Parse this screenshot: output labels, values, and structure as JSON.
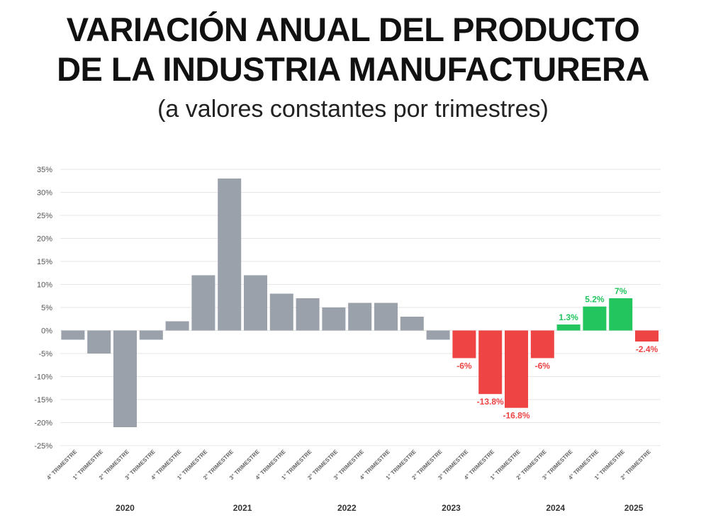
{
  "title_line1": "VARIACIÓN ANUAL DEL PRODUCTO",
  "title_line2": "DE LA INDUSTRIA MANUFACTURERA",
  "subtitle": "(a valores constantes por trimestres)",
  "colors": {
    "neutral": "#9ba1ab",
    "negative": "#ee4444",
    "positive": "#22c55e",
    "grid": "#e6e6e6"
  },
  "chart_data": {
    "type": "bar",
    "title": "VARIACIÓN ANUAL DEL PRODUCTO DE LA INDUSTRIA MANUFACTURERA",
    "subtitle": "(a valores constantes por trimestres)",
    "ylim": [
      -25,
      35
    ],
    "yticks": [
      35,
      30,
      25,
      20,
      15,
      10,
      5,
      0,
      -5,
      -10,
      -15,
      -20,
      -25
    ],
    "ytick_labels": [
      "35%",
      "30%",
      "25%",
      "20%",
      "15%",
      "10%",
      "5%",
      "0%",
      "-5%",
      "-10%",
      "-15%",
      "-20%",
      "-25%"
    ],
    "categories": [
      "4° TRIMESTRE",
      "1° TRIMESTRE",
      "2° TRIMESTRE",
      "3° TRIMESTRE",
      "4° TRIMESTRE",
      "1° TRIMESTRE",
      "2° TRIMESTRE",
      "3° TRIMESTRE",
      "4° TRIMESTRE",
      "1° TRIMESTRE",
      "2° TRIMESTRE",
      "3° TRIMESTRE",
      "4° TRIMESTRE",
      "1° TRIMESTRE",
      "2° TRIMESTRE",
      "3° TRIMESTRE",
      "4° TRIMESTRE",
      "1° TRIMESTRE",
      "2° TRIMESTRE",
      "3° TRIMESTRE",
      "4° TRIMESTRE",
      "1° TRIMESTRE",
      "2° TRIMESTRE"
    ],
    "values": [
      -2,
      -5,
      -21,
      -2,
      2,
      12,
      33,
      12,
      8,
      7,
      5,
      6,
      6,
      3,
      -2,
      -6,
      -13.8,
      -16.8,
      -6,
      1.3,
      5.2,
      7,
      -2.4
    ],
    "color_groups": [
      "neutral",
      "neutral",
      "neutral",
      "neutral",
      "neutral",
      "neutral",
      "neutral",
      "neutral",
      "neutral",
      "neutral",
      "neutral",
      "neutral",
      "neutral",
      "neutral",
      "neutral",
      "negative",
      "negative",
      "negative",
      "negative",
      "positive",
      "positive",
      "positive",
      "negative"
    ],
    "data_labels": [
      "",
      "",
      "",
      "",
      "",
      "",
      "",
      "",
      "",
      "",
      "",
      "",
      "",
      "",
      "",
      "-6%",
      "-13.8%",
      "-16.8%",
      "-6%",
      "1.3%",
      "5.2%",
      "7%",
      "-2.4%"
    ],
    "years": [
      {
        "label": "2020",
        "center_index": 2
      },
      {
        "label": "2021",
        "center_index": 6.5
      },
      {
        "label": "2022",
        "center_index": 10.5
      },
      {
        "label": "2023",
        "center_index": 14.5
      },
      {
        "label": "2024",
        "center_index": 18.5
      },
      {
        "label": "2025",
        "center_index": 21.5
      }
    ]
  }
}
